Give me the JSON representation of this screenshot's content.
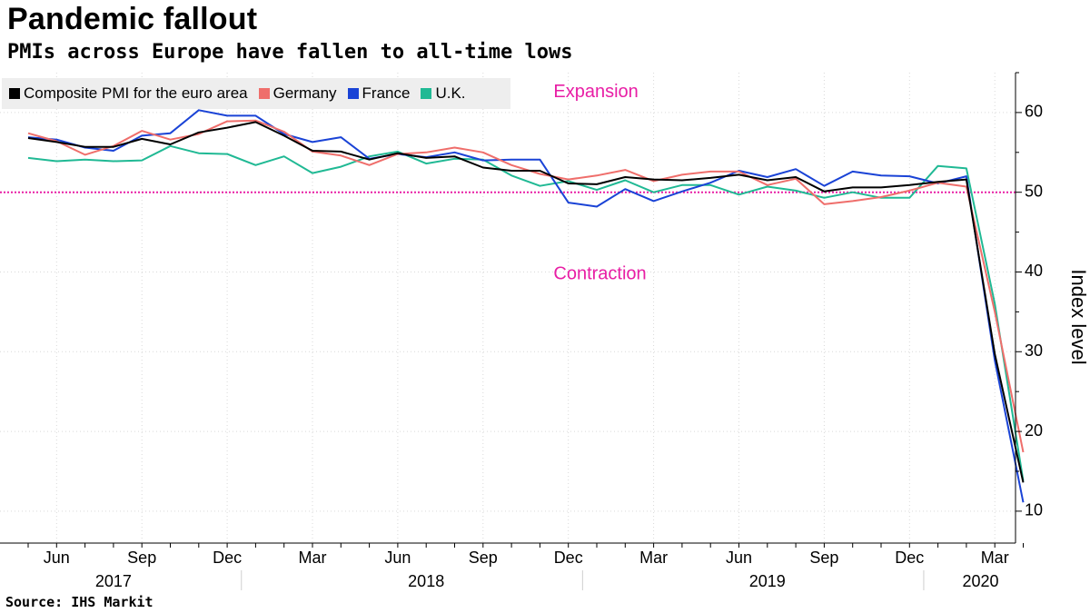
{
  "title": "Pandemic fallout",
  "subtitle": "PMIs across Europe have fallen to all-time lows",
  "source": "Source: IHS Markit",
  "chart_data": {
    "type": "line",
    "title": "Pandemic fallout",
    "subtitle": "PMIs across Europe have fallen to all-time lows",
    "ylabel": "Index level",
    "xlabel": "",
    "ylim": [
      6,
      65
    ],
    "yticks": [
      10,
      20,
      30,
      40,
      50,
      60
    ],
    "grid": true,
    "legend_position": "top-left",
    "reference_line": {
      "value": 50,
      "color": "#e81ea5"
    },
    "annotations": [
      {
        "text": "Expansion",
        "x": "2018-11",
        "y": 62.5,
        "color": "#e81ea5"
      },
      {
        "text": "Contraction",
        "x": "2018-11",
        "y": 39.7,
        "color": "#e81ea5"
      }
    ],
    "x": [
      "2017-05",
      "2017-06",
      "2017-07",
      "2017-08",
      "2017-09",
      "2017-10",
      "2017-11",
      "2017-12",
      "2018-01",
      "2018-02",
      "2018-03",
      "2018-04",
      "2018-05",
      "2018-06",
      "2018-07",
      "2018-08",
      "2018-09",
      "2018-10",
      "2018-11",
      "2018-12",
      "2019-01",
      "2019-02",
      "2019-03",
      "2019-04",
      "2019-05",
      "2019-06",
      "2019-07",
      "2019-08",
      "2019-09",
      "2019-10",
      "2019-11",
      "2019-12",
      "2020-01",
      "2020-02",
      "2020-03",
      "2020-04"
    ],
    "x_tick_labels": [
      {
        "x": "2017-06",
        "label": "Jun"
      },
      {
        "x": "2017-09",
        "label": "Sep"
      },
      {
        "x": "2017-12",
        "label": "Dec"
      },
      {
        "x": "2018-03",
        "label": "Mar"
      },
      {
        "x": "2018-06",
        "label": "Jun"
      },
      {
        "x": "2018-09",
        "label": "Sep"
      },
      {
        "x": "2018-12",
        "label": "Dec"
      },
      {
        "x": "2019-03",
        "label": "Mar"
      },
      {
        "x": "2019-06",
        "label": "Jun"
      },
      {
        "x": "2019-09",
        "label": "Sep"
      },
      {
        "x": "2019-12",
        "label": "Dec"
      },
      {
        "x": "2020-03",
        "label": "Mar"
      }
    ],
    "year_labels": [
      {
        "x": "2017-08",
        "label": "2017"
      },
      {
        "x": "2018-07",
        "label": "2018"
      },
      {
        "x": "2019-07",
        "label": "2019"
      },
      {
        "x": "2020-02.5",
        "label": "2020"
      }
    ],
    "series": [
      {
        "name": "Composite PMI for the euro area",
        "color": "#000000",
        "values": [
          56.8,
          56.3,
          55.7,
          55.7,
          56.7,
          56.0,
          57.5,
          58.1,
          58.8,
          57.1,
          55.2,
          55.1,
          54.1,
          54.9,
          54.3,
          54.5,
          53.1,
          52.7,
          52.7,
          51.1,
          51.0,
          51.9,
          51.6,
          51.5,
          51.8,
          52.2,
          51.5,
          51.9,
          50.1,
          50.6,
          50.6,
          50.9,
          51.3,
          51.6,
          29.7,
          13.6
        ]
      },
      {
        "name": "Germany",
        "color": "#ef6e6b",
        "values": [
          57.4,
          56.4,
          54.7,
          55.8,
          57.7,
          56.6,
          57.3,
          58.9,
          59.0,
          57.6,
          55.1,
          54.6,
          53.4,
          54.8,
          55.0,
          55.6,
          55.0,
          53.4,
          52.3,
          51.6,
          52.1,
          52.8,
          51.4,
          52.2,
          52.6,
          52.6,
          50.9,
          51.7,
          48.5,
          48.9,
          49.4,
          50.2,
          51.2,
          50.7,
          35.0,
          17.4
        ]
      },
      {
        "name": "France",
        "color": "#1a43d6",
        "values": [
          56.9,
          56.6,
          55.6,
          55.2,
          57.1,
          57.4,
          60.3,
          59.6,
          59.6,
          57.3,
          56.3,
          56.9,
          54.2,
          54.8,
          54.4,
          55.0,
          54.0,
          54.1,
          54.1,
          48.7,
          48.2,
          50.4,
          48.9,
          50.1,
          51.2,
          52.7,
          51.9,
          52.9,
          50.8,
          52.6,
          52.1,
          52.0,
          51.1,
          52.0,
          28.9,
          11.1
        ]
      },
      {
        "name": "U.K.",
        "color": "#20b994",
        "values": [
          54.3,
          53.9,
          54.1,
          53.9,
          54.0,
          55.8,
          54.9,
          54.8,
          53.4,
          54.5,
          52.4,
          53.2,
          54.5,
          55.1,
          53.6,
          54.2,
          54.1,
          52.1,
          50.8,
          51.4,
          50.3,
          51.5,
          50.0,
          50.9,
          50.9,
          49.7,
          50.7,
          50.2,
          49.3,
          50.0,
          49.3,
          49.3,
          53.3,
          53.0,
          36.0,
          13.8
        ]
      }
    ]
  }
}
